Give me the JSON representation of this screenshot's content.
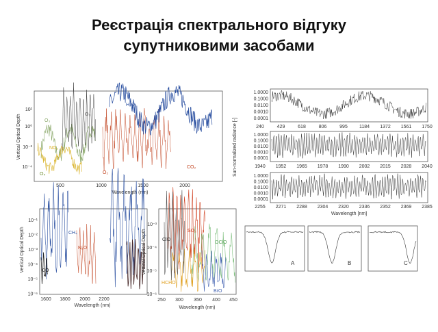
{
  "title": [
    "Реєстрація спектрального відгуку",
    "супутниковими засобами"
  ],
  "panels": [
    {
      "x_label": "Wavelength (nm)",
      "y_label": "Vertical Optical Depth",
      "xticks": [
        "500",
        "1000",
        "1500",
        "2000"
      ],
      "yticks": [
        "10²",
        "10⁰",
        "10⁻²",
        "10⁻⁴"
      ],
      "species": [
        "O₃",
        "O₃",
        "H₂O",
        "NO₂",
        "O₄",
        "O₂",
        "CO₂"
      ]
    },
    {
      "x_label": "Wavelength [nm]",
      "y_label": "Sun-normalized radiance [-]",
      "yticks": [
        "1.0000",
        "0.1000",
        "0.0100",
        "0.0010",
        "0.0001"
      ],
      "strips": [
        [
          "240",
          "429",
          "618",
          "806",
          "995",
          "1184",
          "1372",
          "1561",
          "1750"
        ],
        [
          "1940",
          "1952",
          "1965",
          "1978",
          "1990",
          "2002",
          "2015",
          "2028",
          "2040"
        ],
        [
          "2255",
          "2271",
          "2288",
          "2304",
          "2320",
          "2336",
          "2352",
          "2369",
          "2385"
        ]
      ]
    },
    {
      "x_label": "Wavelength (nm)",
      "y_label": "Vertical Optical Depth",
      "xticks": [
        "1600",
        "1800",
        "2000",
        "2200"
      ],
      "yticks": [
        "10⁻¹",
        "10⁻²",
        "10⁻³",
        "10⁻⁴",
        "10⁻⁵",
        "10⁻⁶"
      ],
      "species": [
        "CH₄",
        "N₂O",
        "CO"
      ]
    },
    {
      "x_label": "Wavelength (nm)",
      "y_label": "Vertical Optical Depth",
      "xticks": [
        "250",
        "300",
        "350",
        "400",
        "450"
      ],
      "yticks": [
        "10⁻³",
        "10⁻⁴",
        "10⁻⁵",
        "10⁻⁶"
      ],
      "species": [
        "SO₂",
        "ClO",
        "OClO",
        "HCHO",
        "BrO"
      ]
    },
    {
      "insets": [
        "A",
        "B",
        "C"
      ]
    }
  ]
}
